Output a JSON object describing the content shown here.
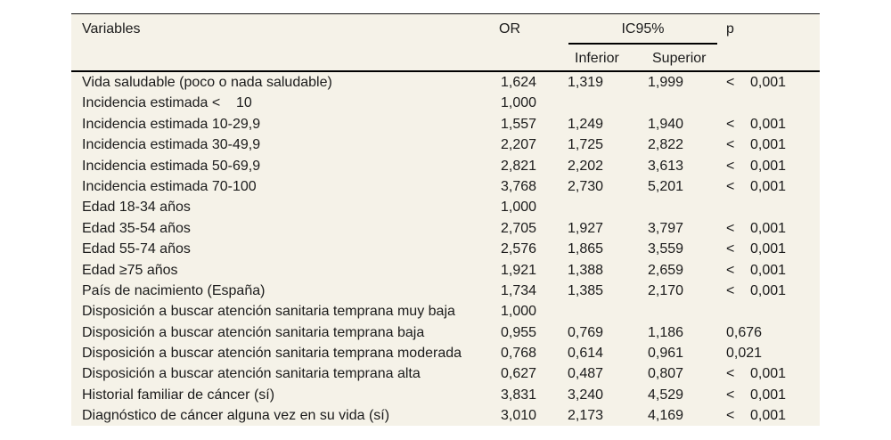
{
  "colors": {
    "table_background": "#f5f2e8",
    "rule": "#000000",
    "text": "#1b1b1b"
  },
  "table": {
    "columns": {
      "variables": "Variables",
      "or": "OR",
      "ic95": "IC95%",
      "ic95_sub": [
        "Inferior",
        "Superior"
      ],
      "p": "p"
    },
    "rows": [
      {
        "variable": "Vida saludable (poco o nada saludable)",
        "or": "1,624",
        "inferior": "1,319",
        "superior": "1,999",
        "p_sign": "<",
        "p": "0,001"
      },
      {
        "variable": "Incidencia estimada <    10",
        "or": "1,000",
        "inferior": "",
        "superior": "",
        "p_sign": "",
        "p": ""
      },
      {
        "variable": "Incidencia estimada 10-29,9",
        "or": "1,557",
        "inferior": "1,249",
        "superior": "1,940",
        "p_sign": "<",
        "p": "0,001"
      },
      {
        "variable": "Incidencia estimada 30-49,9",
        "or": "2,207",
        "inferior": "1,725",
        "superior": "2,822",
        "p_sign": "<",
        "p": "0,001"
      },
      {
        "variable": "Incidencia estimada 50-69,9",
        "or": "2,821",
        "inferior": "2,202",
        "superior": "3,613",
        "p_sign": "<",
        "p": "0,001"
      },
      {
        "variable": "Incidencia estimada 70-100",
        "or": "3,768",
        "inferior": "2,730",
        "superior": "5,201",
        "p_sign": "<",
        "p": "0,001"
      },
      {
        "variable": "Edad 18-34 años",
        "or": "1,000",
        "inferior": "",
        "superior": "",
        "p_sign": "",
        "p": ""
      },
      {
        "variable": "Edad 35-54 años",
        "or": "2,705",
        "inferior": "1,927",
        "superior": "3,797",
        "p_sign": "<",
        "p": "0,001"
      },
      {
        "variable": "Edad 55-74 años",
        "or": "2,576",
        "inferior": "1,865",
        "superior": "3,559",
        "p_sign": "<",
        "p": "0,001"
      },
      {
        "variable": "Edad ≥75 años",
        "or": "1,921",
        "inferior": "1,388",
        "superior": "2,659",
        "p_sign": "<",
        "p": "0,001"
      },
      {
        "variable": "País de nacimiento (España)",
        "or": "1,734",
        "inferior": "1,385",
        "superior": "2,170",
        "p_sign": "<",
        "p": "0,001"
      },
      {
        "variable": "Disposición a buscar atención sanitaria temprana muy baja",
        "or": "1,000",
        "inferior": "",
        "superior": "",
        "p_sign": "",
        "p": ""
      },
      {
        "variable": "Disposición a buscar atención sanitaria temprana baja",
        "or": "0,955",
        "inferior": "0,769",
        "superior": "1,186",
        "p_sign": "",
        "p": "0,676"
      },
      {
        "variable": "Disposición a buscar atención sanitaria temprana moderada",
        "or": "0,768",
        "inferior": "0,614",
        "superior": "0,961",
        "p_sign": "",
        "p": "0,021"
      },
      {
        "variable": "Disposición a buscar atención sanitaria temprana alta",
        "or": "0,627",
        "inferior": "0,487",
        "superior": "0,807",
        "p_sign": "<",
        "p": "0,001"
      },
      {
        "variable": "Historial familiar de cáncer (sí)",
        "or": "3,831",
        "inferior": "3,240",
        "superior": "4,529",
        "p_sign": "<",
        "p": "0,001"
      },
      {
        "variable": "Diagnóstico de cáncer alguna vez en su vida (sí)",
        "or": "3,010",
        "inferior": "2,173",
        "superior": "4,169",
        "p_sign": "<",
        "p": "0,001"
      }
    ]
  }
}
